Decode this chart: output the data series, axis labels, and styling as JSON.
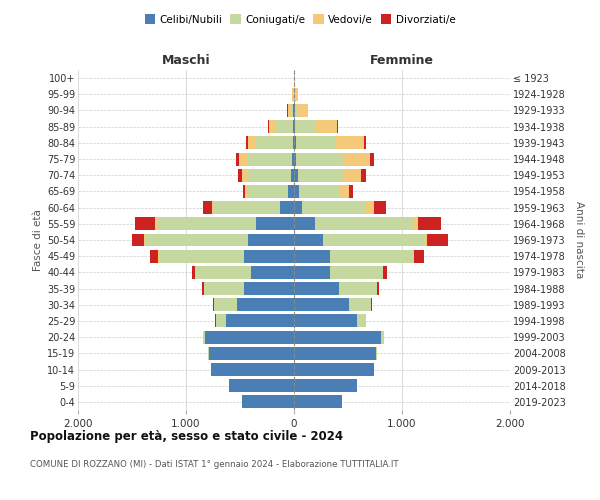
{
  "age_groups": [
    "100+",
    "95-99",
    "90-94",
    "85-89",
    "80-84",
    "75-79",
    "70-74",
    "65-69",
    "60-64",
    "55-59",
    "50-54",
    "45-49",
    "40-44",
    "35-39",
    "30-34",
    "25-29",
    "20-24",
    "15-19",
    "10-14",
    "5-9",
    "0-4"
  ],
  "birth_years": [
    "≤ 1923",
    "1924-1928",
    "1929-1933",
    "1934-1938",
    "1939-1943",
    "1944-1948",
    "1949-1953",
    "1954-1958",
    "1959-1963",
    "1964-1968",
    "1969-1973",
    "1974-1978",
    "1979-1983",
    "1984-1988",
    "1989-1993",
    "1994-1998",
    "1999-2003",
    "2004-2008",
    "2009-2013",
    "2014-2018",
    "2019-2023"
  ],
  "males": {
    "celibi": [
      0,
      0,
      5,
      5,
      10,
      15,
      30,
      55,
      130,
      350,
      430,
      460,
      400,
      460,
      530,
      630,
      820,
      790,
      770,
      600,
      480
    ],
    "coniugati": [
      0,
      5,
      25,
      170,
      340,
      420,
      400,
      370,
      610,
      920,
      940,
      790,
      510,
      370,
      215,
      95,
      25,
      5,
      0,
      0,
      0
    ],
    "vedovi": [
      2,
      10,
      30,
      55,
      75,
      75,
      55,
      25,
      15,
      15,
      15,
      8,
      5,
      0,
      0,
      0,
      0,
      0,
      0,
      0,
      0
    ],
    "divorziati": [
      0,
      0,
      5,
      10,
      20,
      30,
      35,
      18,
      85,
      185,
      115,
      75,
      28,
      18,
      5,
      5,
      0,
      0,
      0,
      0,
      0
    ]
  },
  "females": {
    "nubili": [
      0,
      0,
      5,
      10,
      20,
      20,
      35,
      45,
      75,
      195,
      270,
      330,
      330,
      420,
      510,
      580,
      810,
      760,
      740,
      580,
      440
    ],
    "coniugate": [
      0,
      10,
      25,
      190,
      370,
      430,
      430,
      370,
      590,
      920,
      940,
      770,
      490,
      350,
      205,
      85,
      25,
      5,
      0,
      0,
      0
    ],
    "vedove": [
      5,
      30,
      95,
      195,
      255,
      255,
      155,
      95,
      75,
      35,
      18,
      8,
      5,
      0,
      0,
      0,
      0,
      0,
      0,
      0,
      0
    ],
    "divorziate": [
      0,
      0,
      5,
      10,
      18,
      38,
      48,
      38,
      115,
      215,
      195,
      95,
      32,
      18,
      5,
      5,
      0,
      0,
      0,
      0,
      0
    ]
  },
  "colors": {
    "celibi": "#4a7fb5",
    "coniugati": "#c5d8a0",
    "vedovi": "#f5c97a",
    "divorziati": "#cc2222"
  },
  "xlim": 2000,
  "title": "Popolazione per età, sesso e stato civile - 2024",
  "subtitle": "COMUNE DI ROZZANO (MI) - Dati ISTAT 1° gennaio 2024 - Elaborazione TUTTITALIA.IT",
  "xlabel_left": "Maschi",
  "xlabel_right": "Femmine",
  "ylabel_left": "Fasce di età",
  "ylabel_right": "Anni di nascita",
  "legend_labels": [
    "Celibi/Nubili",
    "Coniugati/e",
    "Vedovi/e",
    "Divorziati/e"
  ],
  "xtick_labels": [
    "2.000",
    "1.000",
    "0",
    "1.000",
    "2.000"
  ],
  "xtick_values": [
    -2000,
    -1000,
    0,
    1000,
    2000
  ],
  "background_color": "#ffffff",
  "grid_color": "#cccccc"
}
